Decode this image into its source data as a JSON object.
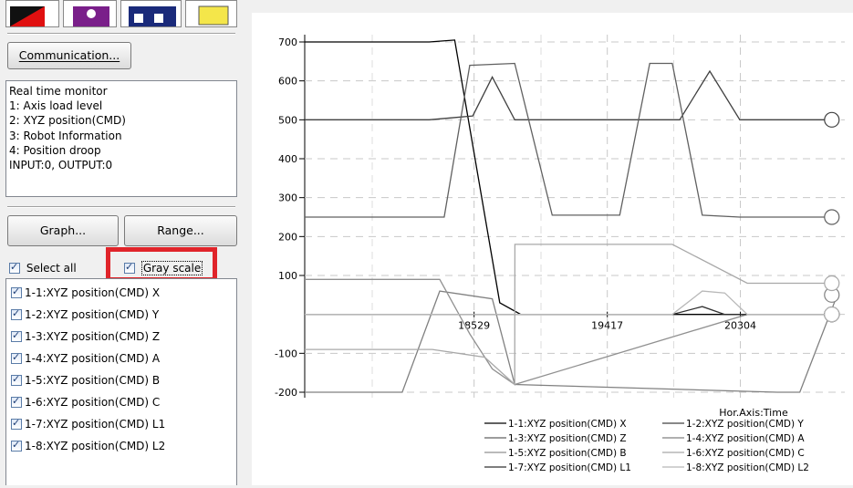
{
  "toolbar": {
    "icons": [
      "red-black-icon",
      "purple-tool-icon",
      "save-disk-icon",
      "yellow-folder-icon"
    ]
  },
  "buttons": {
    "communication": "Communication...",
    "graph": "Graph...",
    "range": "Range..."
  },
  "info": {
    "lines": [
      "Real time monitor",
      "1: Axis load level",
      "2: XYZ position(CMD)",
      "3: Robot Information",
      "4: Position droop",
      "INPUT:0, OUTPUT:0"
    ]
  },
  "options": {
    "select_all": "Select all",
    "gray_scale": "Gray scale",
    "select_all_checked": true,
    "gray_scale_checked": true
  },
  "series_list": [
    "1-1:XYZ position(CMD) X",
    "1-2:XYZ position(CMD) Y",
    "1-3:XYZ position(CMD) Z",
    "1-4:XYZ position(CMD) A",
    "1-5:XYZ position(CMD) B",
    "1-6:XYZ position(CMD) C",
    "1-7:XYZ position(CMD) L1",
    "1-8:XYZ position(CMD) L2"
  ],
  "chart_data": {
    "type": "line",
    "xlabel": "Hor.Axis:Time",
    "x_ticks": [
      "18529",
      "19417",
      "20304"
    ],
    "y_ticks": [
      700,
      600,
      500,
      400,
      300,
      200,
      100,
      -100,
      -200
    ],
    "ylim": [
      -200,
      700
    ],
    "xlim": [
      17400,
      21000
    ],
    "grid": true,
    "colors": [
      "#000000",
      "#404040",
      "#606060",
      "#808080",
      "#909090",
      "#a8a8a8",
      "#303030",
      "#b8b8b8"
    ],
    "legend_position": "bottom-right",
    "legend": [
      "1-1:XYZ position(CMD) X",
      "1-2:XYZ position(CMD) Y",
      "1-3:XYZ position(CMD) Z",
      "1-4:XYZ position(CMD) A",
      "1-5:XYZ position(CMD) B",
      "1-6:XYZ position(CMD) C",
      "1-7:XYZ position(CMD) L1",
      "1-8:XYZ position(CMD) L2"
    ],
    "series": [
      {
        "name": "1-1:XYZ position(CMD) X",
        "x": [
          17400,
          18230,
          18400,
          18700,
          18840,
          20950
        ],
        "y": [
          700,
          700,
          705,
          30,
          0,
          0
        ]
      },
      {
        "name": "1-2:XYZ position(CMD) Y",
        "x": [
          17400,
          18230,
          18520,
          18650,
          18800,
          19900,
          20100,
          20300,
          20950
        ],
        "y": [
          500,
          500,
          510,
          610,
          500,
          500,
          625,
          500,
          500
        ]
      },
      {
        "name": "1-3:XYZ position(CMD) Z",
        "x": [
          17400,
          18330,
          18500,
          18800,
          19050,
          19500,
          19700,
          19850,
          20050,
          20300,
          20950
        ],
        "y": [
          250,
          250,
          640,
          645,
          255,
          255,
          645,
          645,
          255,
          250,
          250
        ]
      },
      {
        "name": "1-4:XYZ position(CMD) A",
        "x": [
          17400,
          18050,
          18300,
          18650,
          18800,
          20550,
          20700,
          20950
        ],
        "y": [
          -200,
          -200,
          60,
          40,
          -180,
          -200,
          -200,
          50
        ]
      },
      {
        "name": "1-5:XYZ position(CMD) B",
        "x": [
          17400,
          18000,
          18300,
          18500,
          18650,
          18800,
          20350,
          20950
        ],
        "y": [
          90,
          90,
          90,
          -50,
          -140,
          -180,
          0,
          0
        ]
      },
      {
        "name": "1-6:XYZ position(CMD) C",
        "x": [
          17400,
          18000,
          18250,
          18600,
          18800,
          18801,
          19850,
          20350,
          20950
        ],
        "y": [
          -90,
          -90,
          -90,
          -110,
          -180,
          180,
          180,
          80,
          80
        ]
      },
      {
        "name": "1-7:XYZ position(CMD) L1",
        "x": [
          17400,
          19850,
          20050,
          20200,
          20350,
          20950
        ],
        "y": [
          0,
          0,
          20,
          0,
          0,
          0
        ]
      },
      {
        "name": "1-8:XYZ position(CMD) L2",
        "x": [
          17400,
          19850,
          20050,
          20200,
          20350,
          20950
        ],
        "y": [
          0,
          0,
          60,
          55,
          0,
          0
        ]
      }
    ]
  }
}
